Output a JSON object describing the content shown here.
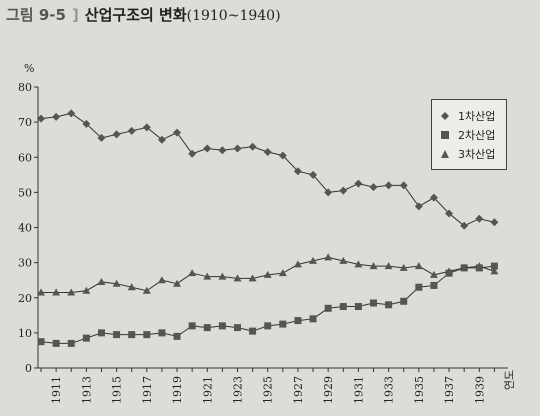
{
  "figure": {
    "label": "그림 9-5",
    "title": "산업구조의 변화",
    "range": "(1910~1940)"
  },
  "chart_data": {
    "type": "line",
    "title": "산업구조의 변화(1910~1940)",
    "xlabel": "연도",
    "ylabel": "%",
    "ylim": [
      0,
      80
    ],
    "yticks": [
      "0",
      "10",
      "20",
      "30",
      "40",
      "50",
      "60",
      "70",
      "80"
    ],
    "xtick_labels": [
      "1911",
      "1913",
      "1915",
      "1917",
      "1919",
      "1921",
      "1923",
      "1925",
      "1927",
      "1929",
      "1931",
      "1933",
      "1935",
      "1937",
      "1939"
    ],
    "x": [
      1910,
      1911,
      1912,
      1913,
      1914,
      1915,
      1916,
      1917,
      1918,
      1919,
      1920,
      1921,
      1922,
      1923,
      1924,
      1925,
      1926,
      1927,
      1928,
      1929,
      1930,
      1931,
      1932,
      1933,
      1934,
      1935,
      1936,
      1937,
      1938,
      1939,
      1940
    ],
    "series": [
      {
        "name": "1차산업",
        "marker": "diamond",
        "values": [
          71,
          71.5,
          72.5,
          69.5,
          65.5,
          66.5,
          67.5,
          68.5,
          65,
          67,
          61,
          62.5,
          62,
          62.5,
          63,
          61.5,
          60.5,
          56,
          55,
          50,
          50.5,
          52.5,
          51.5,
          52,
          52,
          46,
          48.5,
          44,
          40.5,
          42.5,
          41.5
        ]
      },
      {
        "name": "2차산업",
        "marker": "square",
        "values": [
          7.5,
          7,
          7,
          8.5,
          10,
          9.5,
          9.5,
          9.5,
          10,
          9,
          12,
          11.5,
          12,
          11.5,
          10.5,
          12,
          12.5,
          13.5,
          14,
          17,
          17.5,
          17.5,
          18.5,
          18,
          19,
          23,
          23.5,
          27,
          28.5,
          28.5,
          29
        ]
      },
      {
        "name": "3차산업",
        "marker": "triangle",
        "values": [
          21.5,
          21.5,
          21.5,
          22,
          24.5,
          24,
          23,
          22,
          25,
          24,
          27,
          26,
          26,
          25.5,
          25.5,
          26.5,
          27,
          29.5,
          30.5,
          31.5,
          30.5,
          29.5,
          29,
          29,
          28.5,
          29,
          26.5,
          27.5,
          28.5,
          29,
          27.5
        ]
      }
    ],
    "legend_position": "top-right",
    "grid": false
  }
}
